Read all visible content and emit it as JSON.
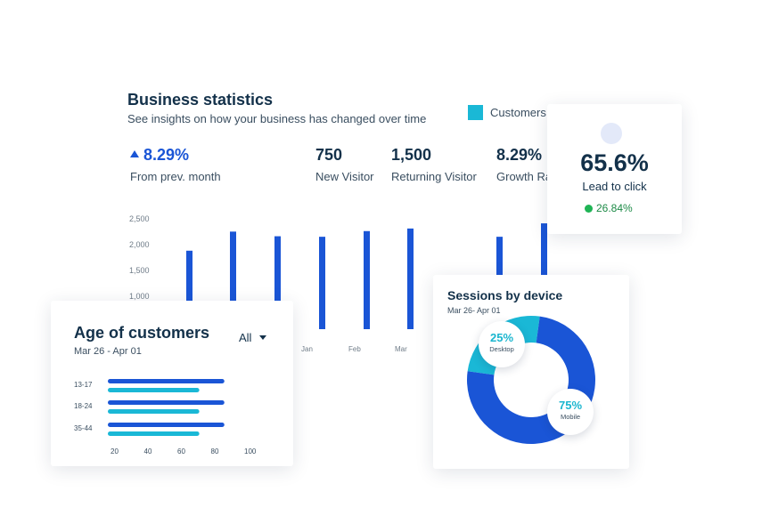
{
  "colors": {
    "primary_blue": "#1a55d6",
    "cyan": "#1ab8d6",
    "dark_text": "#13314a",
    "positive_green": "#1fb455"
  },
  "business": {
    "title": "Business statistics",
    "subtitle": "See insights on how your business has changed over time",
    "legend_label": "Customers",
    "stats": [
      {
        "value": "8.29%",
        "label": "From prev. month",
        "trend": "up"
      },
      {
        "value": "750",
        "label": "New Visitor"
      },
      {
        "value": "1,500",
        "label": "Returning Visitor"
      },
      {
        "value": "8.29%",
        "label": "Growth Ra"
      }
    ]
  },
  "lead": {
    "value": "65.6%",
    "label": "Lead to click",
    "change": "26.84%"
  },
  "age": {
    "title": "Age of customers",
    "range": "Mar 26 - Apr 01",
    "filter": "All"
  },
  "sessions": {
    "title": "Sessions by device",
    "range": "Mar 26- Apr 01",
    "desktop_pct": "25%",
    "desktop_label": "Desktop",
    "mobile_pct": "75%",
    "mobile_label": "Mobile"
  },
  "chart_data": [
    {
      "type": "bar",
      "y_ticks": [
        "2,500",
        "2,000",
        "1,500",
        "1,000"
      ],
      "x_tick_labels": [
        "Jan",
        "Feb",
        "Mar"
      ],
      "series": [
        {
          "name": "Customers",
          "values": [
            1900,
            2270,
            2180,
            2170,
            2280,
            2330,
            2170,
            2430
          ]
        }
      ],
      "ylim": [
        500,
        2500
      ]
    },
    {
      "type": "bar",
      "orientation": "horizontal",
      "categories": [
        "13-17",
        "18-24",
        "35-44"
      ],
      "series": [
        {
          "values": [
            86,
            86,
            86
          ]
        },
        {
          "values": [
            71,
            71,
            71
          ]
        }
      ],
      "x_ticks": [
        "20",
        "40",
        "60",
        "80",
        "100"
      ],
      "xlim": [
        20,
        100
      ]
    },
    {
      "type": "pie",
      "labels": [
        "Desktop",
        "Mobile"
      ],
      "values": [
        25,
        75
      ]
    }
  ]
}
